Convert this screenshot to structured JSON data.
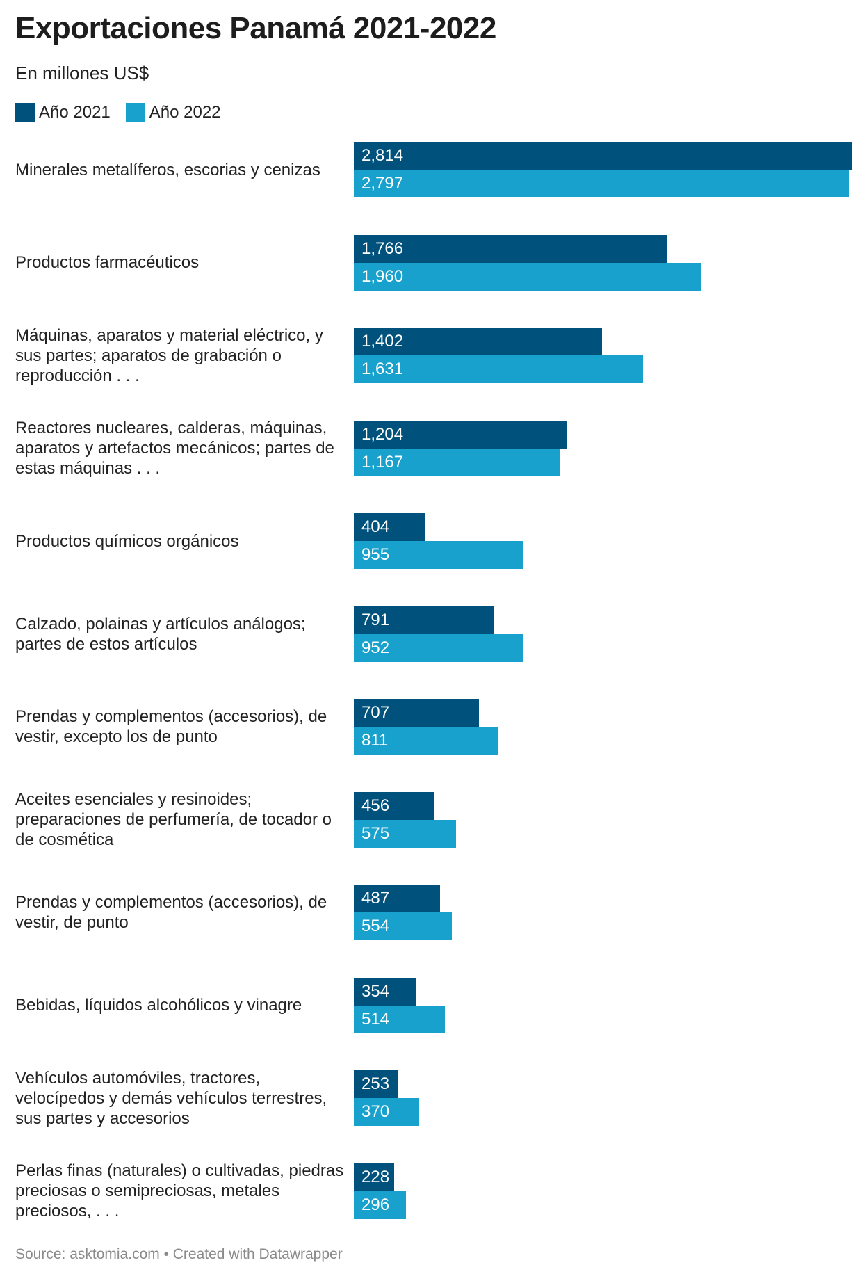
{
  "chart_data": {
    "type": "bar",
    "orientation": "horizontal",
    "title": "Exportaciones Panamá 2021-2022",
    "subtitle": "En millones US$",
    "categories": [
      "Minerales metalíferos, escorias y cenizas",
      "Productos farmacéuticos",
      "Máquinas, aparatos y material eléctrico, y sus partes; aparatos de grabación o reproducción . . .",
      "Reactores nucleares, calderas, máquinas, aparatos y artefactos mecánicos; partes de estas máquinas . . .",
      "Productos químicos orgánicos",
      "Calzado, polainas y artículos análogos; partes de estos artículos",
      "Prendas y complementos (accesorios), de vestir, excepto los de punto",
      "Aceites esenciales y resinoides; preparaciones de perfumería, de tocador o de cosmética",
      "Prendas y complementos (accesorios), de vestir, de punto",
      "Bebidas, líquidos alcohólicos y vinagre",
      "Vehículos automóviles, tractores, velocípedos y demás vehículos terrestres, sus partes y accesorios",
      "Perlas finas (naturales) o cultivadas, piedras preciosas o semipreciosas, metales preciosos, . . ."
    ],
    "series": [
      {
        "name": "Año 2021",
        "color": "#00527c",
        "values": [
          2814,
          1766,
          1402,
          1204,
          404,
          791,
          707,
          456,
          487,
          354,
          253,
          228
        ],
        "labels": [
          "2,814",
          "1,766",
          "1,402",
          "1,204",
          "404",
          "791",
          "707",
          "456",
          "487",
          "354",
          "253",
          "228"
        ]
      },
      {
        "name": "Año 2022",
        "color": "#18a1cd",
        "values": [
          2797,
          1960,
          1631,
          1167,
          955,
          952,
          811,
          575,
          554,
          514,
          370,
          296
        ],
        "labels": [
          "2,797",
          "1,960",
          "1,631",
          "1,167",
          "955",
          "952",
          "811",
          "575",
          "554",
          "514",
          "370",
          "296"
        ]
      }
    ],
    "xlim": [
      0,
      2814
    ],
    "grid": false,
    "legend": "top-left"
  },
  "footer": "Source: asktomia.com • Created with Datawrapper"
}
